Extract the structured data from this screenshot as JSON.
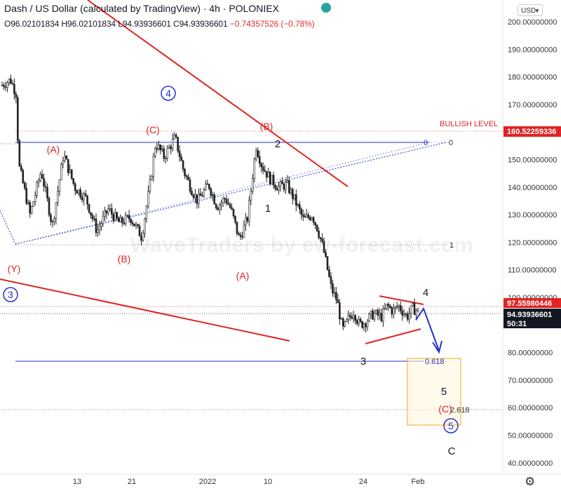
{
  "header": {
    "title": "Dash / US Dollar (calculated by TradingView) · 4h · POLONIEX",
    "open": "O96.02101834",
    "high": "H96.02101834",
    "low": "L94.93936601",
    "close": "C94.93936601",
    "change": "−0.74357526 (−0.78%)"
  },
  "currency": "USD",
  "watermark": "WaveTraders by ew-forecast.com",
  "colors": {
    "wave_red": "#e02424",
    "wave_blue": "#2433c8",
    "price_blue": "#3344cc",
    "candles": "#222222",
    "fib_box": "#f5a623"
  },
  "chart_data": {
    "type": "candlestick",
    "symbol": "Dash / US Dollar",
    "interval": "4h",
    "y_ticks": [
      200,
      190,
      180,
      170,
      160,
      150,
      140,
      130,
      120,
      110,
      100,
      90,
      80,
      70,
      60,
      50,
      40
    ],
    "y_tick_labels": [
      "200.00000000",
      "190.00000000",
      "180.00000000",
      "170.00000000",
      "160.00000000",
      "150.00000000",
      "140.00000000",
      "130.00000000",
      "120.00000000",
      "110.00000000",
      "100.00000000",
      "90.00000000",
      "80.00000000",
      "70.00000000",
      "60.00000000",
      "50.00000000",
      "40.00000000"
    ],
    "x_ticks": [
      "13",
      "21",
      "2022",
      "10",
      "24",
      "Feb"
    ],
    "ylim": [
      38,
      206
    ],
    "price_path": [
      [
        0,
        177
      ],
      [
        3,
        179
      ],
      [
        5,
        174
      ],
      [
        6,
        148
      ],
      [
        10,
        130
      ],
      [
        14,
        146
      ],
      [
        18,
        126
      ],
      [
        22,
        152
      ],
      [
        26,
        140
      ],
      [
        30,
        136
      ],
      [
        34,
        124
      ],
      [
        38,
        132
      ],
      [
        42,
        127
      ],
      [
        46,
        129
      ],
      [
        50,
        122
      ],
      [
        53,
        141
      ],
      [
        55,
        156
      ],
      [
        58,
        151
      ],
      [
        62,
        158
      ],
      [
        65,
        146
      ],
      [
        68,
        139
      ],
      [
        70,
        135
      ],
      [
        74,
        141
      ],
      [
        77,
        133
      ],
      [
        80,
        136
      ],
      [
        82,
        132
      ],
      [
        85,
        121
      ],
      [
        88,
        129
      ],
      [
        91,
        155
      ],
      [
        93,
        148
      ],
      [
        96,
        143
      ],
      [
        99,
        140
      ],
      [
        102,
        141
      ],
      [
        105,
        135
      ],
      [
        108,
        128
      ],
      [
        111,
        130
      ],
      [
        113,
        125
      ],
      [
        115,
        118
      ],
      [
        116,
        113
      ],
      [
        118,
        103
      ],
      [
        120,
        99
      ],
      [
        122,
        88
      ],
      [
        124,
        92
      ],
      [
        126,
        95
      ],
      [
        128,
        90
      ],
      [
        130,
        91
      ],
      [
        133,
        94
      ],
      [
        136,
        93
      ],
      [
        138,
        97
      ],
      [
        140,
        95
      ],
      [
        142,
        97
      ],
      [
        145,
        93
      ],
      [
        147,
        96
      ],
      [
        149,
        95
      ]
    ],
    "levels": [
      {
        "label": "BULLISH LEVEL",
        "value": "160.52259336",
        "price": 160.52
      },
      {
        "label": "",
        "value": "97.55980446",
        "price": 97.56
      },
      {
        "label": "",
        "value": "94.93936601",
        "price": 94.94,
        "countdown": "50:31"
      }
    ],
    "fib_labels": [
      "0",
      "1",
      "0.618",
      "2.618"
    ],
    "wave_labels": [
      {
        "text": "(A)",
        "style": "red"
      },
      {
        "text": "(C)",
        "style": "red"
      },
      {
        "text": "(B)",
        "style": "red"
      },
      {
        "text": "(B)",
        "style": "red"
      },
      {
        "text": "(A)",
        "style": "red"
      },
      {
        "text": "(Y)",
        "style": "red"
      },
      {
        "text": "(C)",
        "style": "red"
      },
      {
        "text": "2",
        "style": "black"
      },
      {
        "text": "1",
        "style": "black"
      },
      {
        "text": "3",
        "style": "black"
      },
      {
        "text": "4",
        "style": "black"
      },
      {
        "text": "5",
        "style": "black"
      },
      {
        "text": "C",
        "style": "black"
      },
      {
        "text": "4",
        "style": "circled"
      },
      {
        "text": "3",
        "style": "circled"
      },
      {
        "text": "5",
        "style": "circled"
      }
    ]
  }
}
